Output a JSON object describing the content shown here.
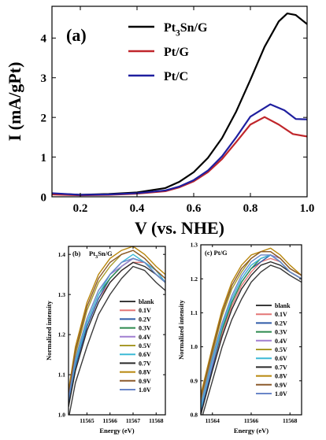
{
  "chart_data": [
    {
      "panel": "(a)",
      "type": "line",
      "xlabel": "V (vs. NHE)",
      "ylabel": "I (mA/gPt)",
      "xlim": [
        0.1,
        1.0
      ],
      "ylim": [
        0,
        4.8
      ],
      "xticks": [
        "0.2",
        "0.4",
        "0.6",
        "0.8",
        "1.0"
      ],
      "yticks": [
        "0",
        "1",
        "2",
        "3",
        "4"
      ],
      "legend": "top-right",
      "series": [
        {
          "name": "Pt₃Sn/G",
          "color": "#000000",
          "x": [
            0.1,
            0.2,
            0.3,
            0.4,
            0.5,
            0.55,
            0.6,
            0.65,
            0.7,
            0.75,
            0.8,
            0.85,
            0.9,
            0.93,
            0.96,
            1.0
          ],
          "y": [
            0.08,
            0.05,
            0.07,
            0.11,
            0.22,
            0.38,
            0.62,
            0.98,
            1.48,
            2.15,
            2.95,
            3.78,
            4.42,
            4.62,
            4.58,
            4.35
          ]
        },
        {
          "name": "Pt/G",
          "color": "#c0262b",
          "x": [
            0.1,
            0.2,
            0.3,
            0.4,
            0.5,
            0.55,
            0.6,
            0.65,
            0.7,
            0.75,
            0.8,
            0.85,
            0.9,
            0.95,
            1.0
          ],
          "y": [
            0.06,
            0.04,
            0.05,
            0.08,
            0.14,
            0.24,
            0.39,
            0.62,
            0.95,
            1.38,
            1.82,
            2.01,
            1.82,
            1.58,
            1.52
          ]
        },
        {
          "name": "Pt/C",
          "color": "#1f1f9f",
          "x": [
            0.1,
            0.2,
            0.3,
            0.4,
            0.5,
            0.55,
            0.6,
            0.65,
            0.7,
            0.75,
            0.8,
            0.87,
            0.92,
            0.96,
            1.0
          ],
          "y": [
            0.09,
            0.05,
            0.06,
            0.09,
            0.16,
            0.26,
            0.42,
            0.66,
            1.02,
            1.5,
            2.02,
            2.33,
            2.18,
            1.96,
            1.95
          ]
        }
      ]
    },
    {
      "panel": "(b)",
      "title": "Pt₃Sn/G",
      "type": "line",
      "xlabel": "Energy (eV)",
      "ylabel": "Normalized intensity",
      "xlim": [
        11564.2,
        11568.4
      ],
      "ylim": [
        1.0,
        1.42
      ],
      "xticks": [
        "11565",
        "11566",
        "11567",
        "11568"
      ],
      "yticks": [
        "1.0",
        "1.1",
        "1.2",
        "1.3",
        "1.4"
      ],
      "x": [
        11564.2,
        11564.5,
        11565.0,
        11565.5,
        11566.0,
        11566.5,
        11567.0,
        11567.5,
        11568.0,
        11568.4
      ],
      "legend": "bottom-right",
      "series": [
        {
          "name": "blank",
          "color": "#3a3a3a",
          "values": [
            0.99,
            1.08,
            1.17,
            1.25,
            1.3,
            1.34,
            1.37,
            1.36,
            1.33,
            1.31
          ]
        },
        {
          "name": "0.1V",
          "color": "#e47777",
          "values": [
            1.03,
            1.12,
            1.22,
            1.29,
            1.33,
            1.36,
            1.38,
            1.38,
            1.36,
            1.33
          ]
        },
        {
          "name": "0.2V",
          "color": "#2f5aa8",
          "values": [
            1.03,
            1.12,
            1.22,
            1.29,
            1.34,
            1.37,
            1.39,
            1.38,
            1.36,
            1.33
          ]
        },
        {
          "name": "0.3V",
          "color": "#2c8a4e",
          "values": [
            1.04,
            1.13,
            1.23,
            1.3,
            1.34,
            1.37,
            1.39,
            1.38,
            1.35,
            1.33
          ]
        },
        {
          "name": "0.4V",
          "color": "#a07fd0",
          "values": [
            1.04,
            1.13,
            1.23,
            1.3,
            1.35,
            1.37,
            1.39,
            1.38,
            1.36,
            1.33
          ]
        },
        {
          "name": "0.5V",
          "color": "#a89a2b",
          "values": [
            1.05,
            1.15,
            1.26,
            1.33,
            1.37,
            1.4,
            1.41,
            1.39,
            1.36,
            1.34
          ]
        },
        {
          "name": "0.6V",
          "color": "#3dbad6",
          "values": [
            1.04,
            1.13,
            1.23,
            1.3,
            1.35,
            1.38,
            1.4,
            1.38,
            1.36,
            1.33
          ]
        },
        {
          "name": "0.7V",
          "color": "#2a2a2a",
          "values": [
            1.02,
            1.11,
            1.21,
            1.28,
            1.33,
            1.36,
            1.38,
            1.37,
            1.35,
            1.33
          ]
        },
        {
          "name": "0.8V",
          "color": "#b8860b",
          "values": [
            1.06,
            1.17,
            1.28,
            1.35,
            1.39,
            1.41,
            1.42,
            1.4,
            1.37,
            1.35
          ]
        },
        {
          "name": "0.9V",
          "color": "#8b5a2b",
          "values": [
            1.05,
            1.16,
            1.27,
            1.34,
            1.38,
            1.4,
            1.41,
            1.39,
            1.36,
            1.34
          ]
        },
        {
          "name": "1.0V",
          "color": "#6a86c8",
          "values": [
            1.04,
            1.14,
            1.24,
            1.31,
            1.35,
            1.38,
            1.39,
            1.38,
            1.35,
            1.33
          ]
        }
      ]
    },
    {
      "panel": "(c)",
      "title": "Pt/G",
      "type": "line",
      "xlabel": "Energy (eV)",
      "ylabel": "Normalized intensity",
      "xlim": [
        11563.4,
        11568.6
      ],
      "ylim": [
        0.8,
        1.3
      ],
      "xticks": [
        "11564",
        "11566",
        "11568"
      ],
      "yticks": [
        "0.8",
        "0.9",
        "1.0",
        "1.1",
        "1.2",
        "1.3"
      ],
      "x": [
        11563.4,
        11564.0,
        11564.5,
        11565.0,
        11565.5,
        11566.0,
        11566.5,
        11567.0,
        11567.5,
        11568.0,
        11568.6
      ],
      "legend": "bottom-right",
      "series": [
        {
          "name": "blank",
          "color": "#3a3a3a",
          "values": [
            0.78,
            0.9,
            1.0,
            1.08,
            1.14,
            1.19,
            1.22,
            1.24,
            1.23,
            1.21,
            1.19
          ]
        },
        {
          "name": "0.1V",
          "color": "#e47777",
          "values": [
            0.81,
            0.94,
            1.04,
            1.12,
            1.18,
            1.22,
            1.25,
            1.26,
            1.25,
            1.22,
            1.2
          ]
        },
        {
          "name": "0.2V",
          "color": "#2f5aa8",
          "values": [
            0.81,
            0.94,
            1.05,
            1.13,
            1.19,
            1.23,
            1.25,
            1.27,
            1.25,
            1.22,
            1.2
          ]
        },
        {
          "name": "0.3V",
          "color": "#2c8a4e",
          "values": [
            0.82,
            0.95,
            1.05,
            1.13,
            1.19,
            1.23,
            1.26,
            1.27,
            1.25,
            1.22,
            1.2
          ]
        },
        {
          "name": "0.4V",
          "color": "#a07fd0",
          "values": [
            0.82,
            0.95,
            1.06,
            1.14,
            1.2,
            1.24,
            1.26,
            1.27,
            1.26,
            1.23,
            1.21
          ]
        },
        {
          "name": "0.5V",
          "color": "#a89a2b",
          "values": [
            0.84,
            0.98,
            1.09,
            1.17,
            1.22,
            1.26,
            1.28,
            1.28,
            1.26,
            1.23,
            1.21
          ]
        },
        {
          "name": "0.6V",
          "color": "#3dbad6",
          "values": [
            0.82,
            0.96,
            1.06,
            1.14,
            1.2,
            1.24,
            1.26,
            1.27,
            1.25,
            1.22,
            1.2
          ]
        },
        {
          "name": "0.7V",
          "color": "#2a2a2a",
          "values": [
            0.8,
            0.93,
            1.03,
            1.11,
            1.17,
            1.21,
            1.24,
            1.25,
            1.24,
            1.22,
            1.2
          ]
        },
        {
          "name": "0.8V",
          "color": "#b8860b",
          "values": [
            0.86,
            1.0,
            1.11,
            1.19,
            1.24,
            1.27,
            1.28,
            1.29,
            1.27,
            1.24,
            1.21
          ]
        },
        {
          "name": "0.9V",
          "color": "#8b5a2b",
          "values": [
            0.85,
            0.99,
            1.1,
            1.18,
            1.23,
            1.26,
            1.28,
            1.28,
            1.26,
            1.23,
            1.21
          ]
        },
        {
          "name": "1.0V",
          "color": "#6a86c8",
          "values": [
            0.83,
            0.97,
            1.07,
            1.15,
            1.21,
            1.25,
            1.27,
            1.27,
            1.25,
            1.22,
            1.2
          ]
        }
      ]
    }
  ]
}
